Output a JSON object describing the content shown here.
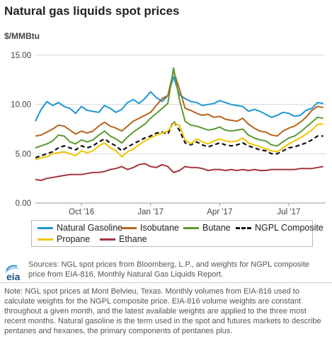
{
  "title": "Natural gas liquids spot prices",
  "unit_label": "$/MMBtu",
  "sources": "Sources: NGL spot prices from Bloomberg, L.P., and weights for NGPL composite price from EIA-816, Monthly Natural Gas Liquids Report.",
  "note": "Note: NGL spot prices at Mont Belvieu, Texas. Monthly volumes from EIA-816 used to calculate weights for the NGPL composite price. EIA-816 volume weights are constant throughout a given month, and the latest available weights are applied to the three most recent months. Natural gasoline is the term used in the spot and futures markets to describe pentanes and hexanes, the primary components of pentanes plus.",
  "logo": {
    "text": "eia",
    "icon": "eia-logo-icon"
  },
  "colors": {
    "natural_gasoline": "#1f96d1",
    "isobutane": "#b5651d",
    "butane": "#5a9a2f",
    "ngpl_composite": "#111111",
    "propane": "#f2c400",
    "ethane": "#a3343c",
    "grid": "#d9d9d9"
  },
  "chart_data": {
    "type": "line",
    "x_unit": "month index (0 = Aug 1, 2016)",
    "xlim": [
      0,
      12.6
    ],
    "ylim": [
      0,
      15
    ],
    "yticks": [
      0,
      5,
      10,
      15
    ],
    "ytick_labels": [
      "0.00",
      "5.00",
      "10.00",
      "15.00"
    ],
    "xticks": [
      {
        "x": 2,
        "label": "Oct '16"
      },
      {
        "x": 5,
        "label": "Jan '17"
      },
      {
        "x": 8,
        "label": "Apr '17"
      },
      {
        "x": 11,
        "label": "Jul '17"
      }
    ],
    "grid": true,
    "legend_position": "bottom",
    "x": [
      0,
      0.25,
      0.5,
      0.75,
      1,
      1.25,
      1.5,
      1.75,
      2,
      2.25,
      2.5,
      2.75,
      3,
      3.25,
      3.5,
      3.75,
      4,
      4.25,
      4.5,
      4.75,
      5,
      5.25,
      5.5,
      5.75,
      6,
      6.25,
      6.5,
      6.75,
      7,
      7.25,
      7.5,
      7.75,
      8,
      8.25,
      8.5,
      8.75,
      9,
      9.25,
      9.5,
      9.75,
      10,
      10.25,
      10.5,
      10.75,
      11,
      11.25,
      11.5,
      11.75,
      12,
      12.25,
      12.5
    ],
    "series": [
      {
        "name": "Natural Gasoline",
        "key": "natural_gasoline",
        "values": [
          8.3,
          9.5,
          10.3,
          9.9,
          10.2,
          9.8,
          9.6,
          9.1,
          9.8,
          9.4,
          9.3,
          9.2,
          9.9,
          9.6,
          9.2,
          9.5,
          10.2,
          10.5,
          10.1,
          10.6,
          11.3,
          10.7,
          10.3,
          10.9,
          12.8,
          11.0,
          10.6,
          10.3,
          10.2,
          9.9,
          10.0,
          10.1,
          10.4,
          10.2,
          10.0,
          9.9,
          9.8,
          9.3,
          9.5,
          9.3,
          9.0,
          8.7,
          8.9,
          9.2,
          9.1,
          8.8,
          8.9,
          9.4,
          9.6,
          10.2,
          10.1
        ]
      },
      {
        "name": "Isobutane",
        "key": "isobutane",
        "values": [
          6.8,
          6.9,
          7.2,
          7.5,
          7.9,
          7.8,
          7.4,
          7.0,
          7.3,
          7.1,
          7.3,
          7.8,
          8.2,
          7.8,
          7.6,
          7.3,
          7.8,
          8.3,
          8.6,
          8.9,
          9.2,
          9.9,
          10.6,
          10.9,
          13.4,
          11.6,
          9.6,
          9.4,
          9.1,
          8.9,
          9.0,
          8.7,
          8.8,
          8.5,
          8.4,
          8.3,
          8.6,
          8.0,
          7.6,
          7.3,
          7.2,
          6.9,
          6.8,
          7.3,
          7.6,
          7.8,
          8.2,
          8.7,
          9.4,
          9.8,
          9.7
        ]
      },
      {
        "name": "Butane",
        "key": "butane",
        "values": [
          5.6,
          5.8,
          6.0,
          6.3,
          6.9,
          6.8,
          6.2,
          6.0,
          6.4,
          6.2,
          6.4,
          6.9,
          7.3,
          6.8,
          6.5,
          6.1,
          6.7,
          7.2,
          7.6,
          8.0,
          8.6,
          9.1,
          9.6,
          10.1,
          13.7,
          10.5,
          8.3,
          7.9,
          7.8,
          7.6,
          7.4,
          7.5,
          7.7,
          7.4,
          7.3,
          7.4,
          7.5,
          6.9,
          6.6,
          6.4,
          6.3,
          5.9,
          5.8,
          6.2,
          6.6,
          6.8,
          7.2,
          7.7,
          8.2,
          8.7,
          8.6
        ]
      },
      {
        "name": "NGPL Composite",
        "key": "ngpl_composite",
        "values": [
          4.6,
          4.8,
          5.0,
          5.2,
          5.6,
          5.8,
          5.6,
          5.4,
          5.8,
          5.6,
          5.8,
          6.2,
          6.5,
          6.1,
          5.8,
          5.3,
          5.7,
          6.0,
          6.3,
          6.6,
          6.8,
          7.1,
          7.2,
          7.0,
          8.3,
          7.4,
          6.1,
          5.9,
          6.2,
          5.9,
          5.7,
          5.9,
          6.1,
          5.9,
          5.8,
          5.9,
          6.1,
          5.8,
          5.6,
          5.4,
          5.3,
          5.0,
          5.0,
          5.3,
          5.6,
          5.7,
          5.9,
          6.1,
          6.4,
          6.8,
          6.8
        ]
      },
      {
        "name": "Propane",
        "key": "propane",
        "values": [
          4.4,
          4.6,
          4.7,
          5.0,
          5.1,
          5.2,
          5.0,
          4.8,
          5.3,
          5.1,
          5.3,
          5.8,
          6.1,
          5.6,
          5.3,
          4.7,
          5.2,
          5.5,
          5.9,
          6.3,
          6.6,
          6.9,
          7.1,
          7.3,
          8.1,
          7.9,
          6.4,
          6.0,
          6.5,
          6.2,
          6.0,
          6.3,
          6.5,
          6.3,
          6.2,
          6.3,
          6.6,
          6.1,
          5.9,
          5.7,
          5.5,
          5.3,
          5.2,
          5.6,
          6.0,
          6.3,
          6.6,
          7.0,
          7.4,
          8.0,
          8.0
        ]
      },
      {
        "name": "Ethane",
        "key": "ethane",
        "values": [
          2.4,
          2.3,
          2.5,
          2.6,
          2.7,
          2.8,
          2.9,
          2.9,
          2.9,
          3.0,
          3.1,
          3.1,
          3.2,
          3.4,
          3.5,
          3.7,
          3.4,
          3.6,
          3.9,
          4.0,
          3.7,
          3.6,
          3.9,
          3.7,
          3.1,
          3.3,
          3.7,
          3.6,
          3.6,
          3.5,
          3.3,
          3.4,
          3.4,
          3.3,
          3.4,
          3.3,
          3.4,
          3.3,
          3.4,
          3.3,
          3.3,
          3.4,
          3.4,
          3.4,
          3.4,
          3.4,
          3.5,
          3.5,
          3.5,
          3.6,
          3.7
        ]
      }
    ]
  }
}
